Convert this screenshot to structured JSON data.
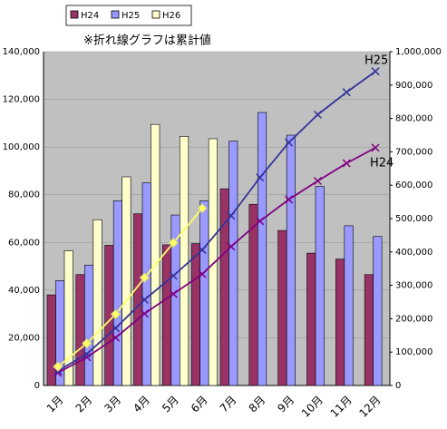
{
  "chart_data": {
    "type": "bar-line",
    "note": "※折れ線グラフは累計値",
    "categories": [
      "1月",
      "2月",
      "3月",
      "4月",
      "5月",
      "6月",
      "7月",
      "8月",
      "9月",
      "10月",
      "11月",
      "12月"
    ],
    "series": [
      {
        "name": "H24",
        "color": "#993366",
        "line_color": "#800080",
        "values": [
          38000,
          46500,
          58800,
          72000,
          59000,
          59500,
          82500,
          76000,
          65000,
          55500,
          53000,
          46500
        ],
        "cumulative": [
          38000,
          84500,
          143300,
          215300,
          274300,
          333800,
          416300,
          492300,
          557300,
          612800,
          665800,
          712300
        ]
      },
      {
        "name": "H25",
        "color": "#9999ff",
        "line_color": "#333399",
        "values": [
          44000,
          50500,
          77500,
          85000,
          71500,
          77500,
          102500,
          114500,
          105000,
          83500,
          67000,
          62500
        ],
        "cumulative": [
          44000,
          94500,
          172000,
          257000,
          328500,
          406000,
          508500,
          623000,
          728000,
          811500,
          878500,
          941000
        ]
      },
      {
        "name": "H26",
        "color": "#ffffcc",
        "line_color": "#ffff66",
        "values": [
          56500,
          69500,
          87500,
          109500,
          104500,
          103500,
          null,
          null,
          null,
          null,
          null,
          null
        ],
        "cumulative": [
          56500,
          126000,
          213500,
          323000,
          427500,
          531000,
          null,
          null,
          null,
          null,
          null,
          null
        ]
      }
    ],
    "ylim": [
      0,
      140000
    ],
    "yticks": [
      0,
      {
        "value": 20000,
        "label": "20,000"
      },
      {
        "value": 40000,
        "label": "40,000"
      },
      {
        "value": 60000,
        "label": "60,000"
      },
      {
        "value": 80000,
        "label": "80,000"
      },
      {
        "value": 100000,
        "label": "100,000"
      },
      {
        "value": 120000,
        "label": "120,000"
      },
      {
        "value": 140000,
        "label": "140,000"
      }
    ],
    "y2lim": [
      0,
      1000000
    ],
    "y2ticks": [
      0,
      {
        "value": 100000,
        "label": "100,000"
      },
      {
        "value": 200000,
        "label": "200,000"
      },
      {
        "value": 300000,
        "label": "300,000"
      },
      {
        "value": 400000,
        "label": "400,000"
      },
      {
        "value": 500000,
        "label": "500,000"
      },
      {
        "value": 600000,
        "label": "600,000"
      },
      {
        "value": 700000,
        "label": "700,000"
      },
      {
        "value": 800000,
        "label": "800,000"
      },
      {
        "value": 900000,
        "label": "900,000"
      },
      {
        "value": 1000000,
        "label": "1,000,000"
      }
    ],
    "grid": true,
    "plot_background": "#c0c0c0"
  }
}
